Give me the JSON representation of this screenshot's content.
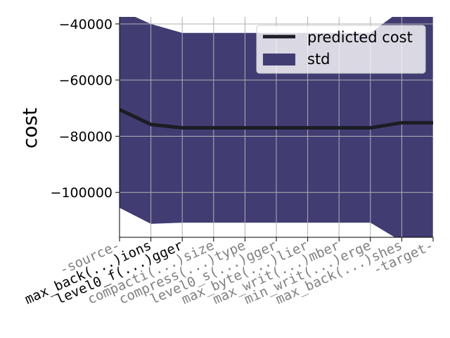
{
  "chart_data": {
    "type": "line",
    "title": "",
    "xlabel": "",
    "ylabel": "cost",
    "ylim": [
      -116000,
      -37500
    ],
    "categories": [
      "-source-",
      "max_back(...)ions",
      "level0_f(...)gger",
      "compacti(...)size",
      "compress(...)type",
      "level0_s(...)gger",
      "max_byte(...)lier",
      "max_writ(...)mber",
      "min_writ(...)erge",
      "max_back(...)shes",
      "-target-"
    ],
    "category_emphasis": [
      false,
      true,
      true,
      false,
      false,
      false,
      false,
      false,
      false,
      false,
      false
    ],
    "series": [
      {
        "name": "predicted cost",
        "values": [
          -70500,
          -75800,
          -77000,
          -77000,
          -77000,
          -77000,
          -77000,
          -77000,
          -77000,
          -75200,
          -75200
        ]
      }
    ],
    "std_band": {
      "name": "std",
      "upper": [
        -35000,
        -40000,
        -43200,
        -43200,
        -43200,
        -43200,
        -43200,
        -43200,
        -43200,
        -35000,
        -35000
      ],
      "lower": [
        -105500,
        -111200,
        -110800,
        -110800,
        -110800,
        -110800,
        -110800,
        -110800,
        -110800,
        -117500,
        -117500
      ]
    },
    "yticks": [
      -40000,
      -60000,
      -80000,
      -100000
    ],
    "grid": true,
    "legend_position": "top-right",
    "colors": {
      "line": "#1c1c24",
      "band": "#413d73",
      "grid": "#b0b0b0",
      "tick_emphasis": "#000000",
      "tick_muted": "#808080"
    }
  }
}
